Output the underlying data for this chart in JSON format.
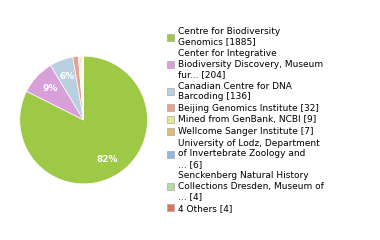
{
  "labels": [
    "Centre for Biodiversity\nGenomics [1885]",
    "Center for Integrative\nBiodiversity Discovery, Museum\nfur... [204]",
    "Canadian Centre for DNA\nBarcoding [136]",
    "Beijing Genomics Institute [32]",
    "Mined from GenBank, NCBI [9]",
    "Wellcome Sanger Institute [7]",
    "University of Lodz, Department\nof Invertebrate Zoology and\n... [6]",
    "Senckenberg Natural History\nCollections Dresden, Museum of\n... [4]",
    "4 Others [4]"
  ],
  "values": [
    1885,
    204,
    136,
    32,
    9,
    7,
    6,
    4,
    4
  ],
  "colors": [
    "#9dc946",
    "#d8a0d8",
    "#b8cfe0",
    "#e8a090",
    "#e8e890",
    "#e8b870",
    "#90b8e0",
    "#b8dca0",
    "#e07060"
  ],
  "background_color": "#ffffff",
  "fontsize": 6.5
}
